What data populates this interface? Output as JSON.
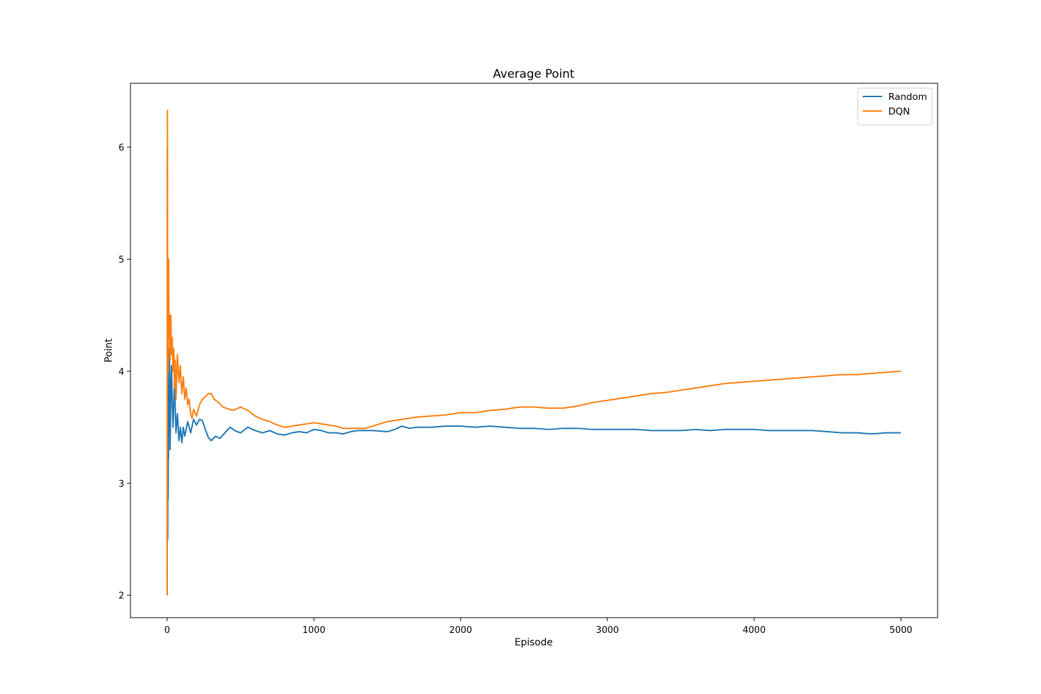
{
  "chart_data": {
    "type": "line",
    "title": "Average Point",
    "xlabel": "Episode",
    "ylabel": "Point",
    "xlim": [
      -250,
      5250
    ],
    "ylim": [
      1.8,
      6.57
    ],
    "xticks": [
      0,
      1000,
      2000,
      3000,
      4000,
      5000
    ],
    "yticks": [
      2,
      3,
      4,
      5,
      6
    ],
    "grid": false,
    "legend_position": "top-right",
    "series": [
      {
        "name": "Random",
        "color": "#1f77b4",
        "points": [
          [
            0,
            2.0
          ],
          [
            1,
            6.0
          ],
          [
            2,
            4.0
          ],
          [
            3,
            3.33
          ],
          [
            4,
            2.5
          ],
          [
            5,
            3.6
          ],
          [
            6,
            3.17
          ],
          [
            7,
            2.86
          ],
          [
            8,
            3.5
          ],
          [
            9,
            3.22
          ],
          [
            10,
            3.6
          ],
          [
            12,
            3.9
          ],
          [
            15,
            4.2
          ],
          [
            18,
            3.9
          ],
          [
            20,
            3.3
          ],
          [
            25,
            3.8
          ],
          [
            30,
            4.05
          ],
          [
            35,
            3.7
          ],
          [
            40,
            3.5
          ],
          [
            50,
            3.9
          ],
          [
            60,
            3.45
          ],
          [
            70,
            3.62
          ],
          [
            80,
            3.38
          ],
          [
            90,
            3.5
          ],
          [
            100,
            3.36
          ],
          [
            110,
            3.5
          ],
          [
            120,
            3.42
          ],
          [
            140,
            3.55
          ],
          [
            160,
            3.45
          ],
          [
            180,
            3.57
          ],
          [
            200,
            3.52
          ],
          [
            220,
            3.57
          ],
          [
            240,
            3.56
          ],
          [
            260,
            3.48
          ],
          [
            280,
            3.41
          ],
          [
            300,
            3.38
          ],
          [
            330,
            3.42
          ],
          [
            360,
            3.4
          ],
          [
            400,
            3.46
          ],
          [
            430,
            3.5
          ],
          [
            460,
            3.47
          ],
          [
            500,
            3.45
          ],
          [
            550,
            3.5
          ],
          [
            600,
            3.47
          ],
          [
            650,
            3.45
          ],
          [
            700,
            3.47
          ],
          [
            750,
            3.44
          ],
          [
            800,
            3.43
          ],
          [
            850,
            3.45
          ],
          [
            900,
            3.46
          ],
          [
            950,
            3.45
          ],
          [
            1000,
            3.48
          ],
          [
            1050,
            3.47
          ],
          [
            1100,
            3.45
          ],
          [
            1150,
            3.45
          ],
          [
            1200,
            3.44
          ],
          [
            1250,
            3.46
          ],
          [
            1300,
            3.47
          ],
          [
            1400,
            3.47
          ],
          [
            1500,
            3.46
          ],
          [
            1550,
            3.48
          ],
          [
            1600,
            3.51
          ],
          [
            1650,
            3.49
          ],
          [
            1700,
            3.5
          ],
          [
            1800,
            3.5
          ],
          [
            1900,
            3.51
          ],
          [
            2000,
            3.51
          ],
          [
            2100,
            3.5
          ],
          [
            2200,
            3.51
          ],
          [
            2300,
            3.5
          ],
          [
            2400,
            3.49
          ],
          [
            2500,
            3.49
          ],
          [
            2600,
            3.48
          ],
          [
            2700,
            3.49
          ],
          [
            2800,
            3.49
          ],
          [
            2900,
            3.48
          ],
          [
            3000,
            3.48
          ],
          [
            3100,
            3.48
          ],
          [
            3200,
            3.48
          ],
          [
            3300,
            3.47
          ],
          [
            3400,
            3.47
          ],
          [
            3500,
            3.47
          ],
          [
            3600,
            3.48
          ],
          [
            3700,
            3.47
          ],
          [
            3800,
            3.48
          ],
          [
            3900,
            3.48
          ],
          [
            4000,
            3.48
          ],
          [
            4100,
            3.47
          ],
          [
            4200,
            3.47
          ],
          [
            4300,
            3.47
          ],
          [
            4400,
            3.47
          ],
          [
            4500,
            3.46
          ],
          [
            4600,
            3.45
          ],
          [
            4700,
            3.45
          ],
          [
            4800,
            3.44
          ],
          [
            4900,
            3.45
          ],
          [
            5000,
            3.45
          ]
        ]
      },
      {
        "name": "DQN",
        "color": "#ff7f0e",
        "points": [
          [
            0,
            2.0
          ],
          [
            1,
            5.0
          ],
          [
            2,
            6.33
          ],
          [
            3,
            5.0
          ],
          [
            4,
            4.4
          ],
          [
            5,
            5.0
          ],
          [
            6,
            4.57
          ],
          [
            7,
            4.0
          ],
          [
            8,
            4.44
          ],
          [
            10,
            5.0
          ],
          [
            12,
            4.5
          ],
          [
            14,
            4.3
          ],
          [
            16,
            4.5
          ],
          [
            20,
            4.1
          ],
          [
            25,
            4.5
          ],
          [
            30,
            4.15
          ],
          [
            35,
            4.3
          ],
          [
            40,
            4.0
          ],
          [
            45,
            4.2
          ],
          [
            50,
            3.85
          ],
          [
            55,
            4.1
          ],
          [
            60,
            3.75
          ],
          [
            70,
            4.15
          ],
          [
            80,
            3.9
          ],
          [
            90,
            4.05
          ],
          [
            100,
            3.8
          ],
          [
            110,
            3.95
          ],
          [
            120,
            3.75
          ],
          [
            130,
            3.85
          ],
          [
            140,
            3.7
          ],
          [
            150,
            3.75
          ],
          [
            160,
            3.62
          ],
          [
            170,
            3.58
          ],
          [
            180,
            3.66
          ],
          [
            200,
            3.6
          ],
          [
            220,
            3.7
          ],
          [
            240,
            3.75
          ],
          [
            260,
            3.77
          ],
          [
            280,
            3.8
          ],
          [
            300,
            3.8
          ],
          [
            320,
            3.75
          ],
          [
            350,
            3.72
          ],
          [
            380,
            3.68
          ],
          [
            400,
            3.67
          ],
          [
            450,
            3.65
          ],
          [
            500,
            3.68
          ],
          [
            550,
            3.65
          ],
          [
            600,
            3.6
          ],
          [
            650,
            3.57
          ],
          [
            700,
            3.55
          ],
          [
            750,
            3.52
          ],
          [
            800,
            3.5
          ],
          [
            850,
            3.51
          ],
          [
            900,
            3.52
          ],
          [
            950,
            3.53
          ],
          [
            1000,
            3.54
          ],
          [
            1050,
            3.53
          ],
          [
            1100,
            3.52
          ],
          [
            1150,
            3.51
          ],
          [
            1200,
            3.49
          ],
          [
            1250,
            3.49
          ],
          [
            1300,
            3.49
          ],
          [
            1350,
            3.49
          ],
          [
            1400,
            3.51
          ],
          [
            1450,
            3.53
          ],
          [
            1500,
            3.55
          ],
          [
            1600,
            3.57
          ],
          [
            1700,
            3.59
          ],
          [
            1800,
            3.6
          ],
          [
            1900,
            3.61
          ],
          [
            2000,
            3.63
          ],
          [
            2100,
            3.63
          ],
          [
            2200,
            3.65
          ],
          [
            2300,
            3.66
          ],
          [
            2400,
            3.68
          ],
          [
            2500,
            3.68
          ],
          [
            2600,
            3.67
          ],
          [
            2700,
            3.67
          ],
          [
            2800,
            3.69
          ],
          [
            2900,
            3.72
          ],
          [
            3000,
            3.74
          ],
          [
            3100,
            3.76
          ],
          [
            3200,
            3.78
          ],
          [
            3300,
            3.8
          ],
          [
            3400,
            3.81
          ],
          [
            3500,
            3.83
          ],
          [
            3600,
            3.85
          ],
          [
            3700,
            3.87
          ],
          [
            3800,
            3.89
          ],
          [
            3900,
            3.9
          ],
          [
            4000,
            3.91
          ],
          [
            4100,
            3.92
          ],
          [
            4200,
            3.93
          ],
          [
            4300,
            3.94
          ],
          [
            4400,
            3.95
          ],
          [
            4500,
            3.96
          ],
          [
            4600,
            3.97
          ],
          [
            4700,
            3.97
          ],
          [
            4800,
            3.98
          ],
          [
            4900,
            3.99
          ],
          [
            5000,
            4.0
          ]
        ]
      }
    ]
  }
}
